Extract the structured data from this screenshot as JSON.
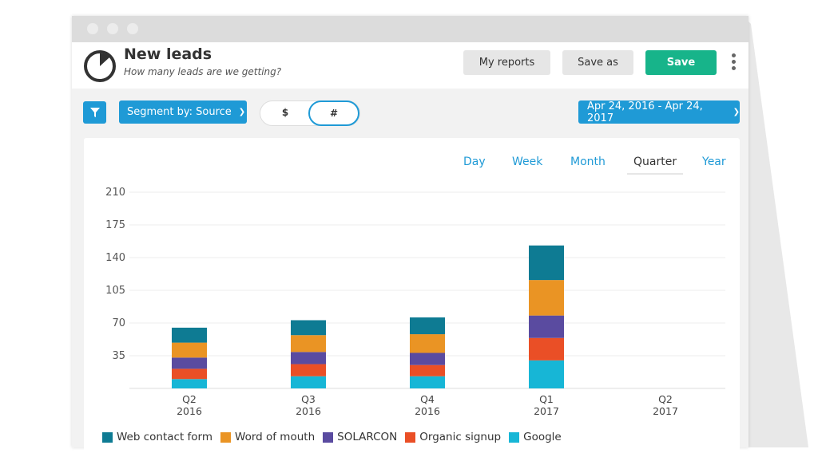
{
  "header": {
    "title": "New leads",
    "subtitle": "How many leads are we getting?",
    "my_reports": "My reports",
    "save_as": "Save as",
    "save": "Save"
  },
  "toolbar": {
    "segment": "Segment by: Source",
    "toggle_dollar": "$",
    "toggle_count": "#",
    "toggle_selected": "#",
    "date_range": "Apr 24, 2016 - Apr 24, 2017"
  },
  "periods": [
    "Day",
    "Week",
    "Month",
    "Quarter",
    "Year"
  ],
  "active_period": "Quarter",
  "colors": {
    "accent": "#1f9ad6",
    "save": "#17b48a"
  },
  "chart_data": {
    "type": "bar",
    "stacked": true,
    "categories": [
      "Q2 2016",
      "Q3 2016",
      "Q4 2016",
      "Q1 2017",
      "Q2 2017"
    ],
    "x_tick_labels": [
      [
        "Q2",
        "2016"
      ],
      [
        "Q3",
        "2016"
      ],
      [
        "Q4",
        "2016"
      ],
      [
        "Q1",
        "2017"
      ],
      [
        "Q2",
        "2017"
      ]
    ],
    "y_ticks": [
      35,
      70,
      105,
      140,
      175,
      210
    ],
    "ylim": [
      0,
      210
    ],
    "grid": true,
    "legend": "bottom",
    "series": [
      {
        "name": "Google",
        "color": "#17b6d6",
        "values": [
          10,
          13,
          13,
          30,
          0
        ]
      },
      {
        "name": "Organic signup",
        "color": "#ea4f26",
        "values": [
          11,
          13,
          12,
          24,
          0
        ]
      },
      {
        "name": "SOLARCON",
        "color": "#5a4ba0",
        "values": [
          12,
          13,
          13,
          24,
          0
        ]
      },
      {
        "name": "Word of mouth",
        "color": "#ea9424",
        "values": [
          16,
          18,
          20,
          38,
          0
        ]
      },
      {
        "name": "Web contact form",
        "color": "#0e7b93",
        "values": [
          16,
          16,
          18,
          37,
          0
        ]
      }
    ],
    "legend_order": [
      "Web contact form",
      "Word of mouth",
      "SOLARCON",
      "Organic signup",
      "Google"
    ]
  }
}
